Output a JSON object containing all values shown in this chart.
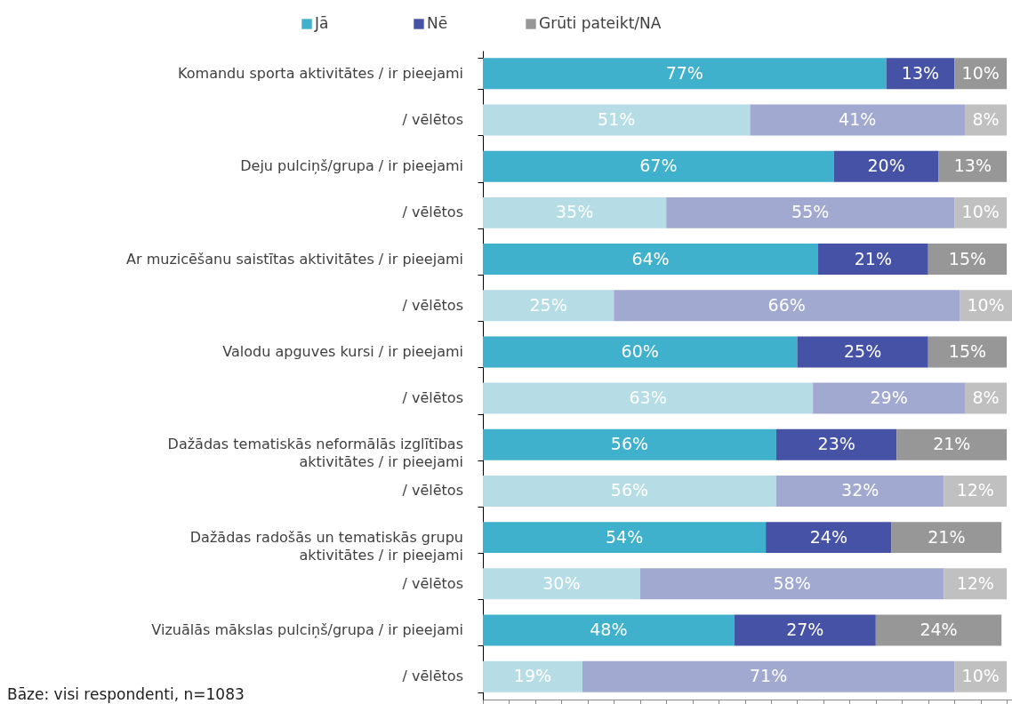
{
  "chart_data": {
    "type": "bar",
    "orientation": "horizontal",
    "stacked": true,
    "legend": "top",
    "grid": false,
    "categories": [
      "Komandu sporta aktivitātes / ir pieejami",
      "/ vēlētos",
      "Deju pulciņš/grupa / ir pieejami",
      "/ vēlētos",
      "Ar muzicēšanu saistītas aktivitātes / ir pieejami",
      "/ vēlētos",
      "Valodu apguves kursi / ir pieejami",
      "/ vēlētos",
      "Dažādas tematiskās neformālās izglītības aktivitātes / ir pieejami",
      "/ vēlētos",
      "Dažādas radošās un tematiskās grupu aktivitātes / ir pieejami",
      "/ vēlētos",
      "Vizuālās mākslas pulciņš/grupa / ir pieejami",
      "/ vēlētos"
    ],
    "series": [
      {
        "name": "Jā",
        "color": "#3fb1cc",
        "colors": [
          "#3fb1cc",
          "#b6dde6",
          "#3fb1cc",
          "#b6dde6",
          "#3fb1cc",
          "#b6dde6",
          "#3fb1cc",
          "#b6dde6",
          "#3fb1cc",
          "#b6dde6",
          "#3fb1cc",
          "#b6dde6",
          "#3fb1cc",
          "#b6dde6"
        ],
        "values": [
          77,
          51,
          67,
          35,
          64,
          25,
          60,
          63,
          56,
          56,
          54,
          30,
          48,
          19
        ],
        "value_labels": [
          "77%",
          "51%",
          "67%",
          "35%",
          "64%",
          "25%",
          "60%",
          "63%",
          "56%",
          "56%",
          "54%",
          "30%",
          "48%",
          "19%"
        ]
      },
      {
        "name": "Nē",
        "color": "#4652a5",
        "colors": [
          "#4652a5",
          "#a2a9d1",
          "#4652a5",
          "#a2a9d1",
          "#4652a5",
          "#a2a9d1",
          "#4652a5",
          "#a2a9d1",
          "#4652a5",
          "#a2a9d1",
          "#4652a5",
          "#a2a9d1",
          "#4652a5",
          "#a2a9d1"
        ],
        "values": [
          13,
          41,
          20,
          55,
          21,
          66,
          25,
          29,
          23,
          32,
          24,
          58,
          27,
          71
        ],
        "value_labels": [
          "13%",
          "41%",
          "20%",
          "55%",
          "21%",
          "66%",
          "25%",
          "29%",
          "23%",
          "32%",
          "24%",
          "58%",
          "27%",
          "71%"
        ]
      },
      {
        "name": "Grūti pateikt/NA",
        "color": "#979797",
        "colors": [
          "#979797",
          "#c0c0c0",
          "#979797",
          "#c0c0c0",
          "#979797",
          "#c0c0c0",
          "#979797",
          "#c0c0c0",
          "#979797",
          "#c0c0c0",
          "#979797",
          "#c0c0c0",
          "#979797",
          "#c0c0c0"
        ],
        "values": [
          10,
          8,
          13,
          10,
          15,
          10,
          15,
          8,
          21,
          12,
          21,
          12,
          24,
          10
        ],
        "value_labels": [
          "10%",
          "8%",
          "13%",
          "10%",
          "15%",
          "10%",
          "15%",
          "8%",
          "21%",
          "12%",
          "21%",
          "12%",
          "24%",
          "10%"
        ]
      }
    ],
    "annotations": [
      "Bāze: visi respondenti, n=1083"
    ]
  }
}
